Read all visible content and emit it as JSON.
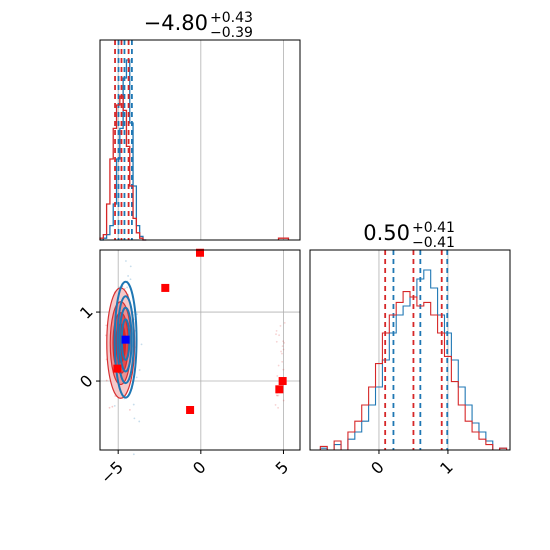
{
  "colors": {
    "blue": "#1f77b4",
    "red": "#d62728",
    "marker_blue": "#0000ff",
    "marker_red": "#ff0000",
    "grid": "#b0b0b0"
  },
  "chart_data": [
    {
      "type": "histogram",
      "panel": "top-left",
      "title": {
        "main": "−4.80",
        "sup": "+0.43",
        "sub": "−0.39"
      },
      "xlim": [
        -6.1,
        6.0
      ],
      "grid": true,
      "series": [
        {
          "color": "blue",
          "x": [
            -6.0,
            -5.8,
            -5.6,
            -5.4,
            -5.2,
            -5.0,
            -4.8,
            -4.6,
            -4.4,
            -4.2,
            -4.0,
            -3.8,
            -3.6,
            -3.4
          ],
          "counts": [
            0,
            1,
            3,
            8,
            20,
            45,
            62,
            90,
            100,
            65,
            30,
            8,
            2,
            0
          ],
          "quantiles": [
            -4.98,
            -4.62,
            -4.17
          ]
        },
        {
          "color": "red",
          "x": [
            -6.0,
            -5.8,
            -5.6,
            -5.4,
            -5.2,
            -5.0,
            -4.8,
            -4.6,
            -4.4,
            -4.2,
            -4.0,
            -3.8,
            -3.6,
            -3.4,
            4.8,
            5.0,
            5.2
          ],
          "counts": [
            1,
            3,
            20,
            45,
            62,
            75,
            80,
            72,
            52,
            30,
            12,
            4,
            1,
            0,
            1,
            1,
            1
          ],
          "quantiles": [
            -5.19,
            -4.8,
            -4.37
          ]
        }
      ]
    },
    {
      "type": "histogram",
      "panel": "bottom-right",
      "title": {
        "main": "0.50",
        "sup": "+0.41",
        "sub": "−0.41"
      },
      "xlim": [
        -1.0,
        1.9
      ],
      "xticks": [
        "0",
        "1"
      ],
      "grid": true,
      "series": [
        {
          "color": "blue",
          "x": [
            -0.8,
            -0.6,
            -0.4,
            -0.3,
            -0.2,
            -0.1,
            0.0,
            0.1,
            0.2,
            0.3,
            0.4,
            0.5,
            0.6,
            0.7,
            0.8,
            0.9,
            1.0,
            1.1,
            1.2,
            1.3,
            1.4,
            1.5,
            1.6,
            1.8
          ],
          "counts": [
            1,
            3,
            6,
            10,
            16,
            25,
            35,
            50,
            65,
            75,
            80,
            85,
            95,
            100,
            90,
            75,
            65,
            50,
            35,
            25,
            15,
            10,
            5,
            1
          ],
          "quantiles": [
            0.21,
            0.6,
            0.99
          ]
        },
        {
          "color": "red",
          "x": [
            -0.8,
            -0.6,
            -0.4,
            -0.3,
            -0.2,
            -0.1,
            0.0,
            0.1,
            0.2,
            0.3,
            0.4,
            0.5,
            0.6,
            0.7,
            0.8,
            0.9,
            1.0,
            1.1,
            1.2,
            1.3,
            1.4,
            1.5,
            1.6,
            1.8
          ],
          "counts": [
            2,
            5,
            10,
            16,
            25,
            35,
            48,
            65,
            75,
            82,
            88,
            85,
            80,
            82,
            75,
            65,
            52,
            38,
            25,
            16,
            10,
            6,
            3,
            1
          ],
          "quantiles": [
            0.09,
            0.5,
            0.91
          ]
        }
      ]
    },
    {
      "type": "contour-scatter",
      "panel": "bottom-left",
      "xlim": [
        -6.1,
        6.0
      ],
      "ylim": [
        -1.0,
        1.9
      ],
      "xticks": [
        "−5",
        "0",
        "5"
      ],
      "yticks": [
        "0",
        "1"
      ],
      "grid": true,
      "contours": [
        {
          "color": "blue",
          "center": [
            -4.55,
            0.6
          ],
          "sigma": [
            0.33,
            0.42
          ]
        },
        {
          "color": "red",
          "center": [
            -4.85,
            0.55
          ],
          "sigma": [
            0.42,
            0.4
          ]
        }
      ],
      "markers": [
        {
          "color": "marker_red",
          "x": -0.05,
          "y": 1.86
        },
        {
          "color": "marker_red",
          "x": -2.15,
          "y": 1.35
        },
        {
          "color": "marker_red",
          "x": -0.65,
          "y": -0.42
        },
        {
          "color": "marker_red",
          "x": 4.75,
          "y": -0.12
        },
        {
          "color": "marker_red",
          "x": 4.95,
          "y": 0.0
        },
        {
          "color": "marker_red",
          "x": -5.05,
          "y": 0.18
        },
        {
          "color": "marker_blue",
          "x": -4.55,
          "y": 0.6
        }
      ]
    }
  ]
}
